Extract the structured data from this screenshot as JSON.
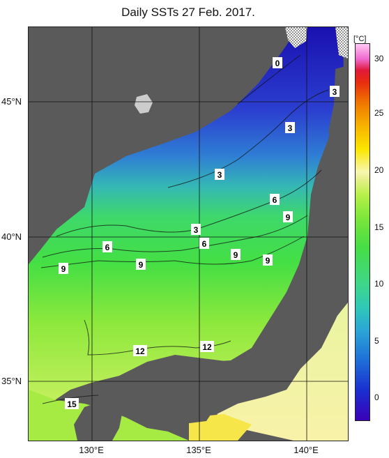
{
  "title": "Daily SSTs 27 Feb. 2017.",
  "lat_labels": [
    "45°N",
    "40°N",
    "35°N"
  ],
  "lon_labels": [
    "130°E",
    "135°E",
    "140°E"
  ],
  "colorbar": {
    "unit": "[°C]",
    "ticks": [
      "30",
      "25",
      "20",
      "15",
      "10",
      "5",
      "0"
    ]
  },
  "contour_labels": [
    "0",
    "3",
    "3",
    "3",
    "3",
    "6",
    "6",
    "6",
    "9",
    "9",
    "9",
    "9",
    "9",
    "12",
    "12",
    "15"
  ],
  "colors": {
    "land": "#5a5a5a",
    "cold": "#1a1ab4",
    "cool": "#2f7fd2",
    "mid": "#31c8a0",
    "warm": "#3ede3e",
    "warmer": "#a9ee40"
  }
}
